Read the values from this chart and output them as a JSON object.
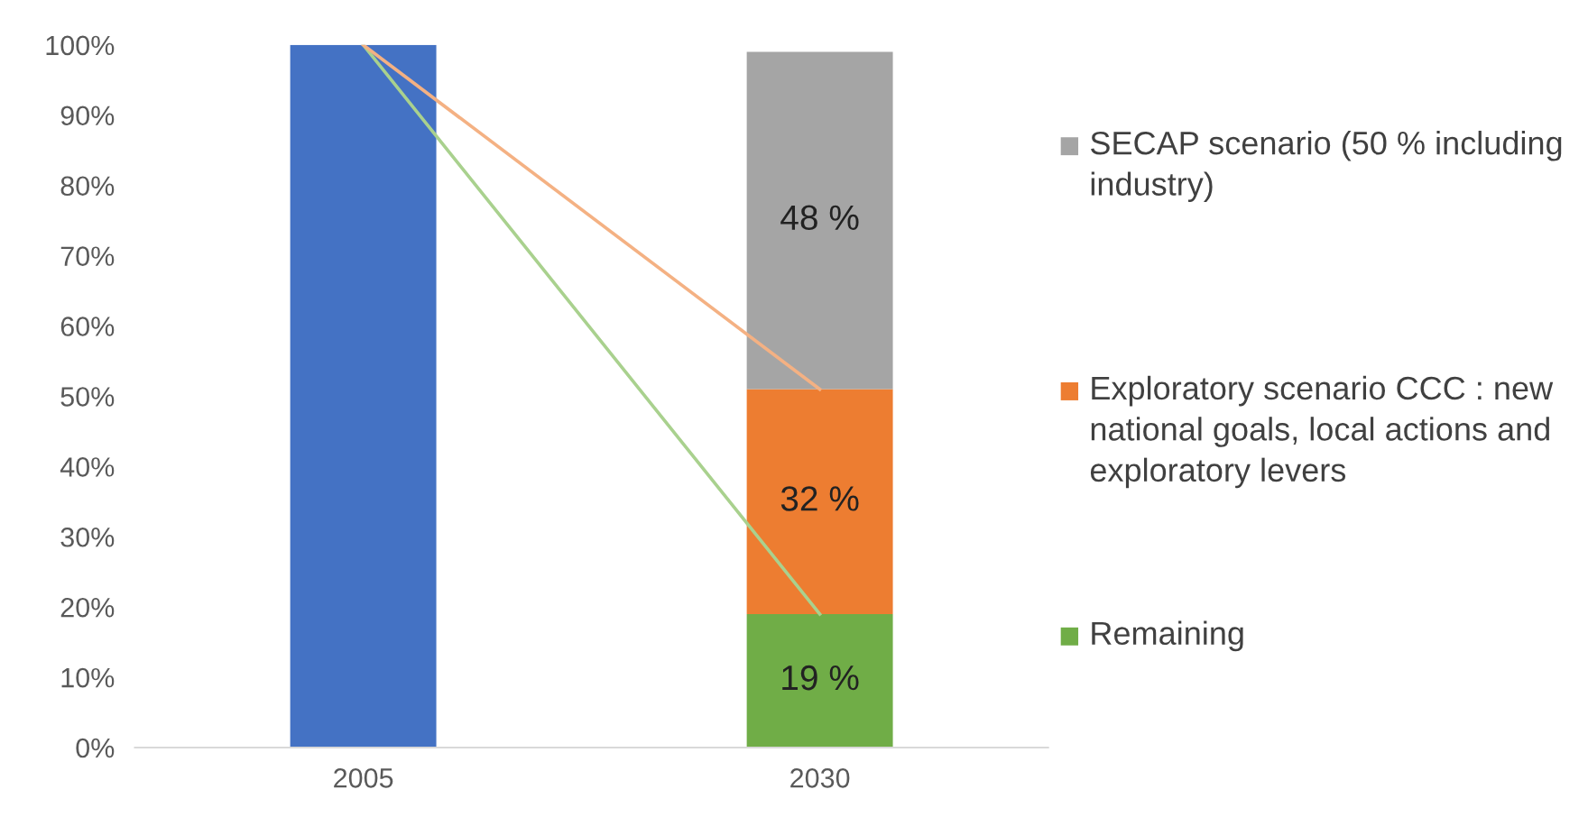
{
  "chart_data": {
    "type": "bar",
    "stacked": true,
    "categories": [
      "2005",
      "2030"
    ],
    "series": [
      {
        "color": "#4472c4",
        "values": [
          100,
          null
        ]
      },
      {
        "name": "Remaining",
        "color": "#70ad47",
        "values": [
          null,
          19
        ],
        "value_labels": [
          null,
          "19 %"
        ]
      },
      {
        "name": "Exploratory scenario CCC : new national goals, local actions and exploratory levers",
        "color": "#ed7d31",
        "values": [
          null,
          32
        ],
        "value_labels": [
          null,
          "32 %"
        ]
      },
      {
        "name": "SECAP scenario (50 % including industry)",
        "color": "#a5a5a5",
        "values": [
          null,
          48
        ],
        "value_labels": [
          null,
          "48 %"
        ]
      },
      {
        "type": "line",
        "color": "#a9d18e",
        "values": [
          100,
          19
        ]
      },
      {
        "type": "line",
        "color": "#f4b183",
        "values": [
          100,
          51
        ]
      }
    ],
    "ylim": [
      0,
      100
    ],
    "yticks": [
      {
        "value": 0,
        "label": "0%"
      },
      {
        "value": 10,
        "label": "10%"
      },
      {
        "value": 20,
        "label": "20%"
      },
      {
        "value": 30,
        "label": "30%"
      },
      {
        "value": 40,
        "label": "40%"
      },
      {
        "value": 50,
        "label": "50%"
      },
      {
        "value": 60,
        "label": "60%"
      },
      {
        "value": 70,
        "label": "70%"
      },
      {
        "value": 80,
        "label": "80%"
      },
      {
        "value": 90,
        "label": "90%"
      },
      {
        "value": 100,
        "label": "100%"
      }
    ],
    "legend": "right",
    "grid": false
  }
}
